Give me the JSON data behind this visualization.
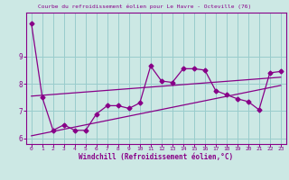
{
  "title": "",
  "xlabel": "Windchill (Refroidissement éolien,°C)",
  "background_color": "#cce8e4",
  "grid_color": "#99cccc",
  "line_color": "#880088",
  "x_values": [
    0,
    1,
    2,
    3,
    4,
    5,
    6,
    7,
    8,
    9,
    10,
    11,
    12,
    13,
    14,
    15,
    16,
    17,
    18,
    19,
    20,
    21,
    22,
    23
  ],
  "main_line": [
    10.2,
    7.5,
    6.3,
    6.5,
    6.3,
    6.3,
    6.9,
    7.2,
    7.2,
    7.1,
    7.3,
    8.65,
    8.1,
    8.05,
    8.55,
    8.55,
    8.5,
    7.75,
    7.6,
    7.45,
    7.35,
    7.05,
    8.4,
    8.45
  ],
  "trend_low": [
    6.1,
    6.18,
    6.26,
    6.34,
    6.42,
    6.5,
    6.58,
    6.66,
    6.74,
    6.82,
    6.9,
    6.98,
    7.06,
    7.14,
    7.22,
    7.3,
    7.38,
    7.46,
    7.54,
    7.62,
    7.7,
    7.78,
    7.86,
    7.94
  ],
  "trend_high": [
    7.55,
    7.58,
    7.61,
    7.64,
    7.67,
    7.7,
    7.73,
    7.76,
    7.79,
    7.82,
    7.85,
    7.88,
    7.91,
    7.94,
    7.97,
    8.0,
    8.03,
    8.06,
    8.09,
    8.12,
    8.15,
    8.18,
    8.21,
    8.24
  ],
  "ylim": [
    5.8,
    10.6
  ],
  "xlim": [
    -0.5,
    23.5
  ],
  "yticks": [
    6,
    7,
    8,
    9
  ],
  "xticks": [
    0,
    1,
    2,
    3,
    4,
    5,
    6,
    7,
    8,
    9,
    10,
    11,
    12,
    13,
    14,
    15,
    16,
    17,
    18,
    19,
    20,
    21,
    22,
    23
  ]
}
